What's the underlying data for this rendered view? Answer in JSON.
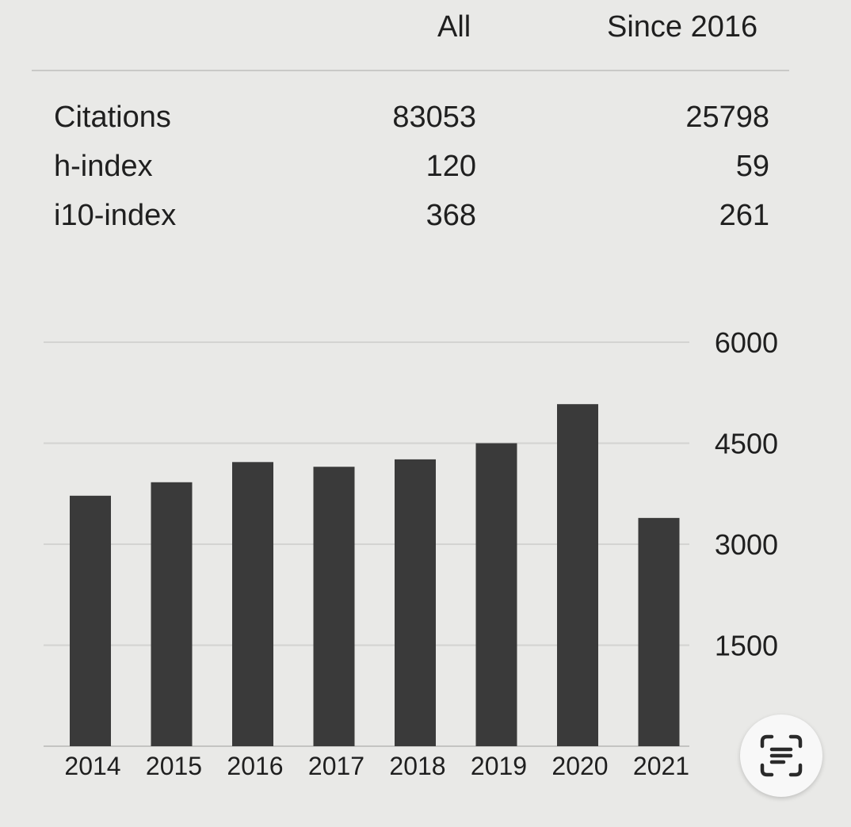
{
  "stats": {
    "columns": {
      "all": "All",
      "since": "Since 2016"
    },
    "rows": [
      {
        "label": "Citations",
        "all": "83053",
        "since": "25798"
      },
      {
        "label": "h-index",
        "all": "120",
        "since": "59"
      },
      {
        "label": "i10-index",
        "all": "368",
        "since": "261"
      }
    ]
  },
  "chart_data": {
    "type": "bar",
    "categories": [
      "2014",
      "2015",
      "2016",
      "2017",
      "2018",
      "2019",
      "2020",
      "2021"
    ],
    "values": [
      3720,
      3920,
      4220,
      4150,
      4260,
      4500,
      5080,
      3390
    ],
    "yticks": [
      "1500",
      "3000",
      "4500",
      "6000"
    ],
    "ylim": [
      0,
      6000
    ],
    "grid": true,
    "bar_color": "#3a3a3a",
    "grid_color": "#d3d3d1"
  },
  "overlay": {
    "scan_icon": "text-scan-icon"
  }
}
